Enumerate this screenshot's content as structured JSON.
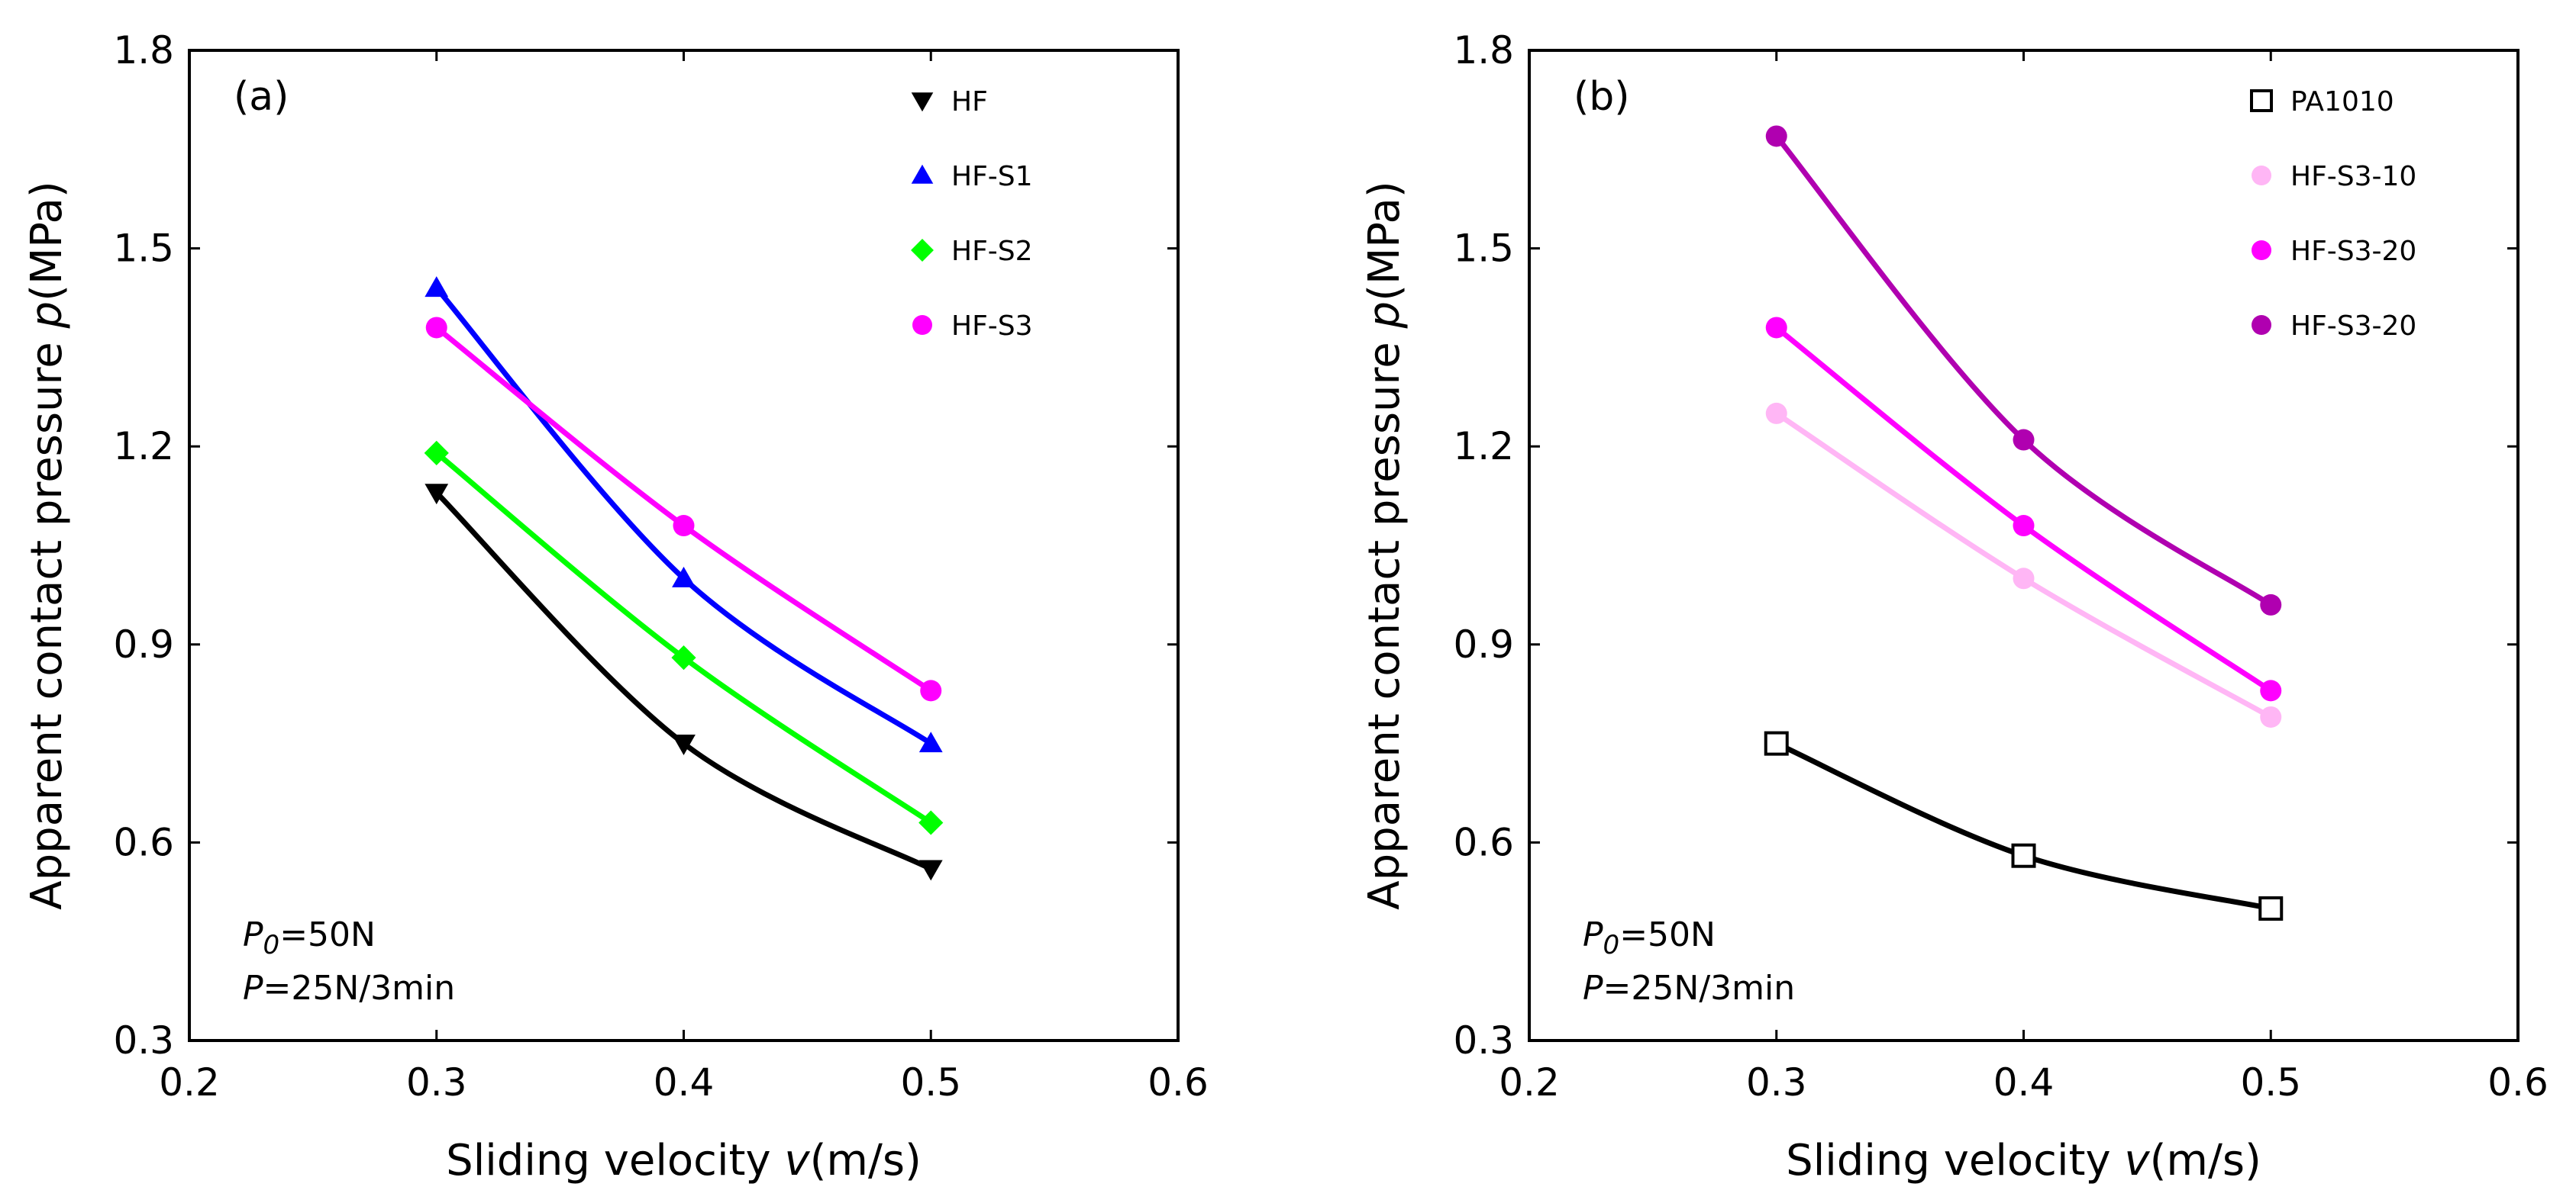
{
  "chart_data": [
    {
      "panel": "(a)",
      "type": "line",
      "xlabel_parts": [
        "Sliding velocity ",
        "v",
        "(m/s)"
      ],
      "ylabel_parts": [
        "Apparent contact pressure ",
        "p",
        "(MPa)"
      ],
      "xlim": [
        0.2,
        0.6
      ],
      "ylim": [
        0.3,
        1.8
      ],
      "xticks": [
        "0.2",
        "0.3",
        "0.4",
        "0.5",
        "0.6"
      ],
      "yticks": [
        "0.3",
        "0.6",
        "0.9",
        "1.2",
        "1.5",
        "1.8"
      ],
      "grid": false,
      "legend_position": "top-right",
      "x": [
        0.3,
        0.4,
        0.5
      ],
      "series": [
        {
          "name": "HF",
          "values": [
            1.13,
            0.75,
            0.56
          ],
          "color": "#000000",
          "marker": "triangle-down"
        },
        {
          "name": "HF-S1",
          "values": [
            1.44,
            1.0,
            0.75
          ],
          "color": "#0000ff",
          "marker": "triangle-up"
        },
        {
          "name": "HF-S2",
          "values": [
            1.19,
            0.88,
            0.63
          ],
          "color": "#00ff00",
          "marker": "diamond"
        },
        {
          "name": "HF-S3",
          "values": [
            1.38,
            1.08,
            0.83
          ],
          "color": "#ff00ff",
          "marker": "circle"
        }
      ],
      "annotations": [
        {
          "italic": "P",
          "sub": "0",
          "text": "=50N"
        },
        {
          "italic": "P",
          "sub": "",
          "text": "=25N/3min"
        }
      ]
    },
    {
      "panel": "(b)",
      "type": "line",
      "xlabel_parts": [
        "Sliding velocity ",
        "v",
        "(m/s)"
      ],
      "ylabel_parts": [
        "Apparent contact pressure ",
        "p",
        "(MPa)"
      ],
      "xlim": [
        0.2,
        0.6
      ],
      "ylim": [
        0.3,
        1.8
      ],
      "xticks": [
        "0.2",
        "0.3",
        "0.4",
        "0.5",
        "0.6"
      ],
      "yticks": [
        "0.3",
        "0.6",
        "0.9",
        "1.2",
        "1.5",
        "1.8"
      ],
      "grid": false,
      "legend_position": "top-right",
      "x": [
        0.3,
        0.4,
        0.5
      ],
      "series": [
        {
          "name": "PA1010",
          "values": [
            0.75,
            0.58,
            0.5
          ],
          "color": "#000000",
          "marker": "square-open"
        },
        {
          "name": "HF-S3-10",
          "values": [
            1.25,
            1.0,
            0.79
          ],
          "color": "#ffb6f5",
          "marker": "circle"
        },
        {
          "name": "HF-S3-20",
          "values": [
            1.38,
            1.08,
            0.83
          ],
          "color": "#ff00ff",
          "marker": "circle"
        },
        {
          "name": "HF-S3-20",
          "values": [
            1.67,
            1.21,
            0.96
          ],
          "color": "#b000b0",
          "marker": "circle"
        }
      ],
      "annotations": [
        {
          "italic": "P",
          "sub": "0",
          "text": "=50N"
        },
        {
          "italic": "P",
          "sub": "",
          "text": "=25N/3min"
        }
      ]
    }
  ]
}
